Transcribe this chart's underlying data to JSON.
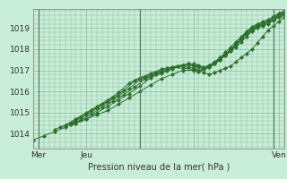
{
  "xlabel": "Pression niveau de la mer( hPa )",
  "bg_color": "#c8edd8",
  "grid_color": "#88bb99",
  "line_color": "#2d6e2d",
  "marker_color": "#2d6e2d",
  "ylim": [
    1013.3,
    1019.9
  ],
  "xlim": [
    0,
    47
  ],
  "xtick_positions": [
    1,
    10,
    30,
    46
  ],
  "xtick_labels": [
    "Mer",
    "Jeu",
    "",
    "Ven"
  ],
  "ytick_positions": [
    1014,
    1015,
    1016,
    1017,
    1018,
    1019
  ],
  "ytick_labels": [
    "1014",
    "1015",
    "1016",
    "1017",
    "1018",
    "1019"
  ],
  "vlines": [
    1,
    20,
    45
  ],
  "series": [
    {
      "x": [
        0,
        2,
        4,
        6,
        8,
        10,
        12,
        14,
        16,
        18,
        20,
        22,
        24,
        26,
        28,
        30,
        31,
        32,
        33,
        34,
        35,
        36,
        37,
        38,
        39,
        40,
        41,
        42,
        43,
        44,
        45,
        46,
        47
      ],
      "y": [
        1013.7,
        1013.9,
        1014.1,
        1014.3,
        1014.5,
        1014.7,
        1014.9,
        1015.1,
        1015.4,
        1015.7,
        1016.0,
        1016.3,
        1016.6,
        1016.8,
        1017.0,
        1017.0,
        1017.0,
        1016.9,
        1016.8,
        1016.9,
        1017.0,
        1017.1,
        1017.2,
        1017.4,
        1017.6,
        1017.8,
        1018.0,
        1018.3,
        1018.6,
        1018.9,
        1019.1,
        1019.3,
        1019.5
      ]
    },
    {
      "x": [
        4,
        6,
        8,
        10,
        12,
        14,
        16,
        18,
        20,
        22,
        24,
        26,
        28,
        30,
        31,
        32,
        33,
        34,
        35,
        36,
        37,
        38,
        39,
        40,
        41,
        42,
        43,
        44,
        45,
        46,
        47
      ],
      "y": [
        1014.2,
        1014.4,
        1014.7,
        1015.0,
        1015.3,
        1015.6,
        1015.95,
        1016.4,
        1016.65,
        1016.85,
        1017.05,
        1017.15,
        1017.1,
        1017.05,
        1016.95,
        1017.05,
        1017.15,
        1017.3,
        1017.5,
        1017.7,
        1017.9,
        1018.1,
        1018.35,
        1018.6,
        1018.85,
        1019.0,
        1019.1,
        1019.2,
        1019.35,
        1019.5,
        1019.6
      ]
    },
    {
      "x": [
        5,
        7,
        9,
        11,
        13,
        15,
        17,
        19,
        21,
        23,
        25,
        27,
        29,
        30,
        31,
        32,
        33,
        34,
        35,
        36,
        37,
        38,
        39,
        40,
        41,
        42,
        43,
        44,
        45,
        46,
        47
      ],
      "y": [
        1014.3,
        1014.5,
        1014.8,
        1015.1,
        1015.4,
        1015.7,
        1016.05,
        1016.5,
        1016.7,
        1016.9,
        1017.1,
        1017.2,
        1017.15,
        1017.1,
        1017.0,
        1017.1,
        1017.2,
        1017.35,
        1017.55,
        1017.75,
        1017.95,
        1018.2,
        1018.45,
        1018.7,
        1018.9,
        1019.05,
        1019.15,
        1019.25,
        1019.4,
        1019.55,
        1019.65
      ]
    },
    {
      "x": [
        6,
        8,
        10,
        12,
        14,
        16,
        18,
        20,
        22,
        24,
        26,
        28,
        30,
        31,
        32,
        33,
        34,
        35,
        36,
        37,
        38,
        39,
        40,
        41,
        42,
        43,
        44,
        45,
        46,
        47
      ],
      "y": [
        1014.4,
        1014.6,
        1014.9,
        1015.2,
        1015.5,
        1015.8,
        1016.15,
        1016.55,
        1016.75,
        1016.95,
        1017.15,
        1017.25,
        1017.2,
        1017.15,
        1017.05,
        1017.15,
        1017.3,
        1017.5,
        1017.7,
        1017.95,
        1018.2,
        1018.5,
        1018.75,
        1018.95,
        1019.1,
        1019.2,
        1019.3,
        1019.45,
        1019.6,
        1019.7
      ]
    },
    {
      "x": [
        7,
        9,
        11,
        13,
        15,
        17,
        19,
        21,
        23,
        25,
        27,
        29,
        30,
        31,
        32,
        33,
        34,
        35,
        36,
        37,
        38,
        39,
        40,
        41,
        42,
        43,
        44,
        45,
        46,
        47
      ],
      "y": [
        1014.45,
        1014.65,
        1014.95,
        1015.25,
        1015.55,
        1015.85,
        1016.2,
        1016.6,
        1016.8,
        1017.0,
        1017.2,
        1017.3,
        1017.25,
        1017.2,
        1017.1,
        1017.2,
        1017.35,
        1017.55,
        1017.75,
        1018.0,
        1018.25,
        1018.55,
        1018.8,
        1019.0,
        1019.15,
        1019.25,
        1019.35,
        1019.5,
        1019.65,
        1019.75
      ]
    },
    {
      "x": [
        8,
        10,
        12,
        14,
        16,
        18,
        20,
        22,
        24,
        26,
        28,
        29,
        30,
        31,
        32,
        33,
        34,
        35,
        36,
        37,
        38,
        39,
        40,
        41,
        42,
        43,
        44,
        45,
        46,
        47
      ],
      "y": [
        1014.5,
        1014.7,
        1015.0,
        1015.3,
        1015.6,
        1015.9,
        1016.25,
        1016.65,
        1016.85,
        1017.05,
        1017.25,
        1017.3,
        1017.3,
        1017.25,
        1017.15,
        1017.25,
        1017.4,
        1017.6,
        1017.85,
        1018.1,
        1018.35,
        1018.6,
        1018.85,
        1019.05,
        1019.2,
        1019.3,
        1019.4,
        1019.55,
        1019.7,
        1019.8
      ]
    }
  ]
}
